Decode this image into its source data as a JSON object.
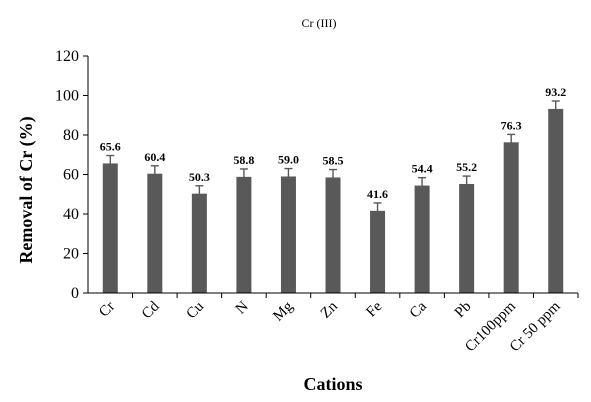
{
  "chart_data": {
    "type": "bar",
    "title": "Cr (III)",
    "xlabel": "Cations",
    "ylabel": "Removal of Cr (%)",
    "ylim": [
      0,
      120
    ],
    "yticks": [
      0,
      20,
      40,
      60,
      80,
      100,
      120
    ],
    "grid": false,
    "categories": [
      "Cr",
      "Cd",
      "Cu",
      "N",
      "Mg",
      "Zn",
      "Fe",
      "Ca",
      "Pb",
      "Cr100ppm",
      "Cr 50 ppm"
    ],
    "values": [
      65.6,
      60.4,
      50.3,
      58.8,
      59.0,
      58.5,
      41.6,
      54.4,
      55.2,
      76.3,
      93.2
    ],
    "data_labels": [
      "65.6",
      "60.4",
      "50.3",
      "58.8",
      "59.0",
      "58.5",
      "41.6",
      "54.4",
      "55.2",
      "76.3",
      "93.2"
    ],
    "error": [
      4,
      4,
      4,
      4,
      4,
      4,
      4,
      4,
      4,
      4,
      4
    ],
    "bar_color": "#595959",
    "error_color": "#595959"
  }
}
